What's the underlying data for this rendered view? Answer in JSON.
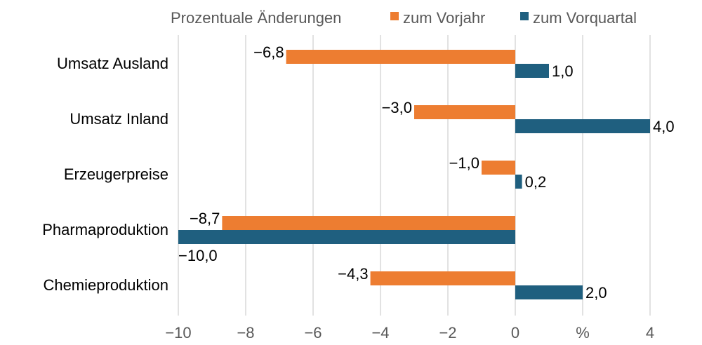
{
  "chart_data": {
    "type": "bar",
    "orientation": "horizontal",
    "title": "Prozentuale Änderungen",
    "categories": [
      "Umsatz Ausland",
      "Umsatz Inland",
      "Erzeugerpreise",
      "Pharmaproduktion",
      "Chemieproduktion"
    ],
    "series": [
      {
        "name": "zum Vorjahr",
        "color": "#ED7D31",
        "values": [
          -6.8,
          -3.0,
          -1.0,
          -8.7,
          -4.3
        ],
        "labels": [
          "−6,8",
          "−3,0",
          "−1,0",
          "−8,7",
          "−4,3"
        ]
      },
      {
        "name": "zum Vorquartal",
        "color": "#1F5F7F",
        "values": [
          1.0,
          4.0,
          0.2,
          -10.0,
          2.0
        ],
        "labels": [
          "1,0",
          "4,0",
          "0,2",
          "−10,0",
          "2,0"
        ]
      }
    ],
    "xlim": [
      -10,
      4
    ],
    "xticks": [
      -10,
      -8,
      -6,
      -4,
      -2,
      0,
      2,
      4
    ],
    "xtick_labels": [
      "−10",
      "−8",
      "−6",
      "−4",
      "−2",
      "0",
      "%",
      "4"
    ],
    "grid": "vertical",
    "legend": "top-right",
    "colors": {
      "grid": "#D9D9D9",
      "text": "#000000",
      "muted": "#595959"
    }
  }
}
